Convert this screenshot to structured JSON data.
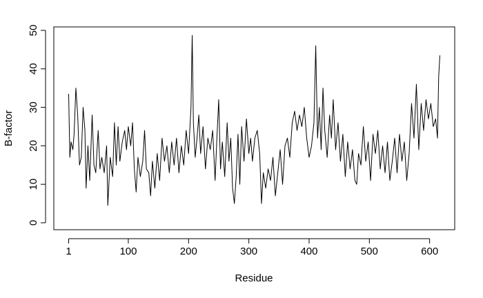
{
  "chart_data": {
    "type": "line",
    "x_label": "Residue",
    "y_label": "B-factor",
    "x": [
      1,
      3,
      5,
      8,
      10,
      13,
      16,
      19,
      22,
      25,
      28,
      30,
      33,
      36,
      40,
      43,
      46,
      50,
      53,
      56,
      60,
      64,
      66,
      70,
      74,
      77,
      80,
      83,
      86,
      90,
      94,
      97,
      100,
      104,
      107,
      110,
      113,
      116,
      120,
      124,
      127,
      130,
      134,
      137,
      140,
      144,
      148,
      152,
      156,
      160,
      164,
      168,
      172,
      176,
      180,
      184,
      188,
      192,
      196,
      200,
      204,
      206,
      208,
      211,
      214,
      217,
      220,
      224,
      228,
      232,
      236,
      240,
      244,
      247,
      250,
      253,
      256,
      260,
      264,
      267,
      270,
      273,
      276,
      279,
      282,
      285,
      288,
      292,
      296,
      300,
      303,
      306,
      310,
      314,
      318,
      321,
      324,
      328,
      332,
      336,
      340,
      344,
      348,
      352,
      356,
      360,
      364,
      368,
      372,
      376,
      380,
      384,
      388,
      392,
      396,
      400,
      404,
      408,
      411,
      414,
      417,
      420,
      423,
      426,
      430,
      434,
      437,
      440,
      444,
      448,
      452,
      456,
      460,
      464,
      468,
      472,
      476,
      479,
      482,
      486,
      490,
      494,
      498,
      502,
      506,
      510,
      514,
      518,
      522,
      526,
      530,
      534,
      538,
      542,
      546,
      550,
      554,
      558,
      562,
      566,
      570,
      574,
      578,
      582,
      586,
      590,
      594,
      598,
      602,
      606,
      610,
      613,
      615,
      617
    ],
    "series": [
      {
        "color": "#000000",
        "values": [
          33.5,
          17,
          21,
          19,
          23,
          35,
          28,
          15,
          17,
          30,
          24,
          9,
          20,
          11,
          28,
          15,
          13,
          24,
          14,
          17,
          13,
          20,
          4.5,
          17,
          12,
          26,
          15,
          25,
          16,
          21,
          24,
          19,
          25,
          20,
          26,
          14,
          8,
          17,
          12,
          16,
          24,
          14,
          13,
          7,
          16,
          9,
          18,
          11,
          22,
          16,
          20,
          13,
          21,
          15,
          22,
          13,
          20,
          15,
          24,
          18,
          30,
          48.7,
          26,
          17,
          22,
          28,
          18,
          25,
          14,
          22,
          19,
          24,
          11,
          22,
          32,
          14,
          21,
          12,
          26,
          16,
          22,
          9,
          5,
          12,
          23,
          10,
          25,
          16,
          27,
          18,
          22,
          16,
          22,
          24,
          18,
          5,
          13,
          9,
          14,
          11,
          17,
          7,
          13,
          19,
          10,
          20,
          22,
          17,
          26,
          29,
          24,
          28,
          25,
          30,
          22,
          17,
          20,
          26,
          46,
          22,
          30,
          19,
          35,
          24,
          17,
          28,
          22,
          32,
          19,
          26,
          16,
          23,
          12,
          21,
          14,
          19,
          11,
          10,
          18,
          15,
          25,
          16,
          21,
          11,
          23,
          18,
          24,
          14,
          20,
          13,
          21,
          11,
          16,
          22,
          13,
          23,
          16,
          21,
          11,
          18,
          31,
          22,
          36,
          19,
          31,
          24,
          32,
          27,
          31,
          25,
          27,
          22,
          38,
          43.5
        ]
      }
    ],
    "xlim": [
      -23.6,
      641.6
    ],
    "ylim": [
      -1.8,
      50.9
    ],
    "xticks": [
      1,
      100,
      200,
      300,
      400,
      500,
      600
    ],
    "yticks": [
      0,
      10,
      20,
      30,
      40,
      50
    ]
  }
}
